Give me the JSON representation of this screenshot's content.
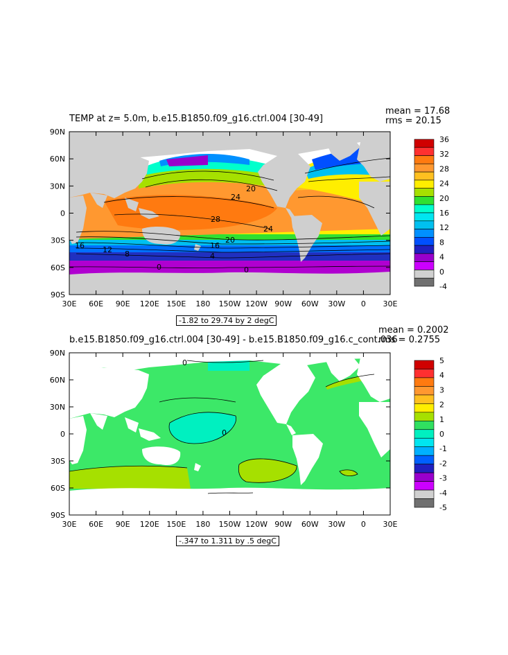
{
  "panel1": {
    "title": "TEMP at z=    5.0m, b.e15.B1850.f09_g16.ctrl.004 [30-49]",
    "mean": "mean = 17.68",
    "rms": "rms = 20.15",
    "subtitle": "-1.82 to 29.74 by 2 degC",
    "colorbar_labels": [
      "36",
      "32",
      "28",
      "24",
      "20",
      "16",
      "12",
      "8",
      "4",
      "0",
      "-4"
    ],
    "colorbar_colors": [
      "#d00000",
      "#ff3030",
      "#ff7a10",
      "#ff9830",
      "#ffc020",
      "#ffee00",
      "#a6e000",
      "#30e030",
      "#00ffcc",
      "#00e6f0",
      "#00c0f0",
      "#0090ff",
      "#0050ff",
      "#2020c0",
      "#9900cc",
      "#cc00ff",
      "#d0d0d0",
      "#707070"
    ],
    "contour_labels": [
      "20",
      "24",
      "28",
      "24",
      "20",
      "16",
      "12",
      "8",
      "16",
      "4",
      "0",
      "0"
    ]
  },
  "panel2": {
    "title": "b.e15.B1850.f09_g16.ctrl.004 [30-49] - b.e15.B1850.f09_g16.c_cont.036 [30",
    "mean": "mean = 0.2002",
    "rms": "rms = 0.2755",
    "subtitle": "-.347 to 1.311 by .5 degC",
    "colorbar_labels": [
      "5",
      "4",
      "3",
      "2",
      "1",
      "0",
      "-1",
      "-2",
      "-3",
      "-4",
      "-5"
    ],
    "colorbar_colors": [
      "#d00000",
      "#ff3030",
      "#ff7a10",
      "#ff9830",
      "#ffc020",
      "#ffee00",
      "#a6e000",
      "#30e060",
      "#00f0c0",
      "#00e6f0",
      "#00b0ff",
      "#0060ff",
      "#2020c0",
      "#9900cc",
      "#cc00ff",
      "#d0d0d0",
      "#707070"
    ],
    "contour_labels": [
      "0",
      "0"
    ]
  },
  "axes": {
    "y_ticks": [
      "90N",
      "60N",
      "30N",
      "0",
      "30S",
      "60S",
      "90S"
    ],
    "x_ticks": [
      "30E",
      "60E",
      "90E",
      "120E",
      "150E",
      "180",
      "150W",
      "120W",
      "90W",
      "60W",
      "30W",
      "0",
      "30E"
    ]
  },
  "colors": {
    "land_panel1": "#cfcfcf",
    "land_panel2": "#ffffff",
    "ocean_diff_main": "#3ce868"
  }
}
